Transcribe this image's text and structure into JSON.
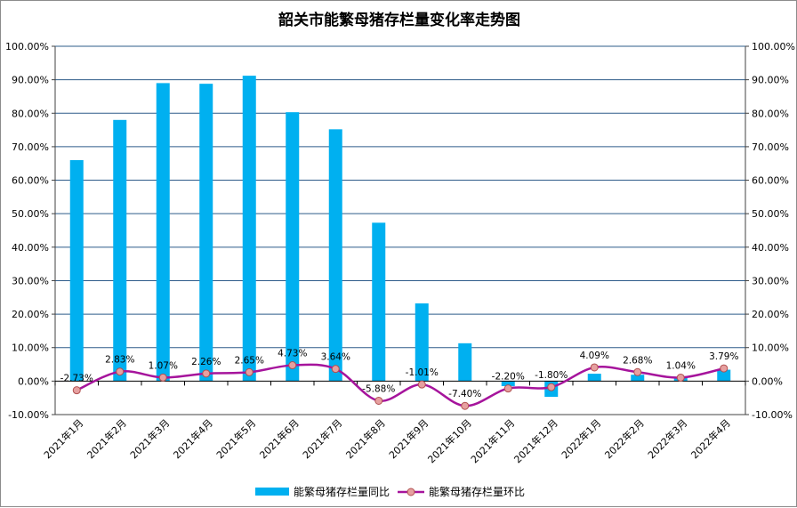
{
  "chart_data": {
    "type": "bar+line",
    "title": "韶关市能繁母猪存栏量变化率走势图",
    "categories": [
      "2021年1月",
      "2021年2月",
      "2021年3月",
      "2021年4月",
      "2021年5月",
      "2021年6月",
      "2021年7月",
      "2021年8月",
      "2021年9月",
      "2021年10月",
      "2021年11月",
      "2021年12月",
      "2022年1月",
      "2022年2月",
      "2022年3月",
      "2022年4月"
    ],
    "series": [
      {
        "name": "能繁母猪存栏量同比",
        "type": "bar",
        "color": "#00b0f0",
        "values": [
          66.0,
          78.0,
          89.0,
          88.8,
          91.2,
          80.3,
          75.2,
          47.3,
          23.2,
          11.3,
          -1.5,
          -4.7,
          2.2,
          1.9,
          1.3,
          3.4
        ]
      },
      {
        "name": "能繁母猪存栏量环比",
        "type": "line",
        "color": "#a6149c",
        "marker_color": "#e6a0a0",
        "values": [
          -2.73,
          2.83,
          1.07,
          2.26,
          2.65,
          4.73,
          3.64,
          -5.88,
          -1.01,
          -7.4,
          -2.2,
          -1.8,
          4.09,
          2.68,
          1.04,
          3.79
        ],
        "labels": [
          "-2.73%",
          "2.83%",
          "1.07%",
          "2.26%",
          "2.65%",
          "4.73%",
          "3.64%",
          "-5.88%",
          "-1.01%",
          "-7.40%",
          "-2.20%",
          "-1.80%",
          "4.09%",
          "2.68%",
          "1.04%",
          "3.79%"
        ]
      }
    ],
    "ylim": [
      -10,
      100
    ],
    "yticks": [
      "100.00%",
      "90.00%",
      "80.00%",
      "70.00%",
      "60.00%",
      "50.00%",
      "40.00%",
      "30.00%",
      "20.00%",
      "10.00%",
      "0.00%",
      "-10.00%"
    ],
    "ytick_values": [
      100,
      90,
      80,
      70,
      60,
      50,
      40,
      30,
      20,
      10,
      0,
      -10
    ],
    "grid": true,
    "legend_position": "bottom-center"
  }
}
